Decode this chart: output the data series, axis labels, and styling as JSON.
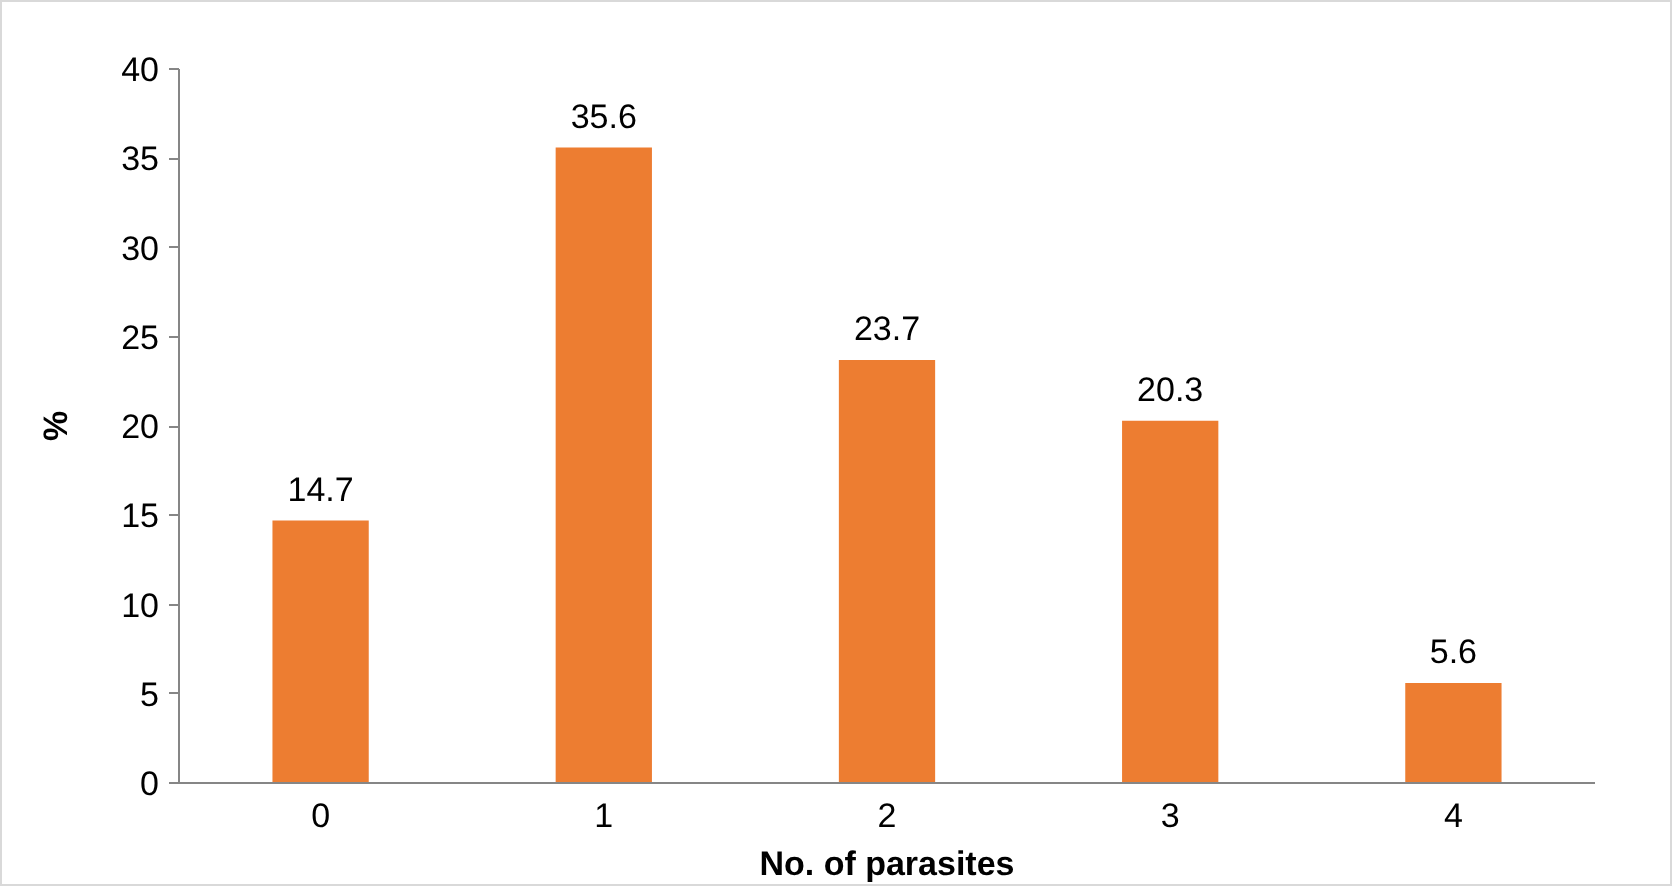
{
  "chart_data": {
    "type": "bar",
    "xlabel": "No. of parasites",
    "ylabel": "%",
    "categories": [
      "0",
      "1",
      "2",
      "3",
      "4"
    ],
    "values": [
      14.7,
      35.6,
      23.7,
      20.3,
      5.6
    ],
    "color": "#ed7d31",
    "ylim": [
      0,
      40
    ],
    "yticks": [
      0,
      5,
      10,
      15,
      20,
      25,
      30,
      35,
      40
    ],
    "grid": false,
    "data_labels": true
  }
}
